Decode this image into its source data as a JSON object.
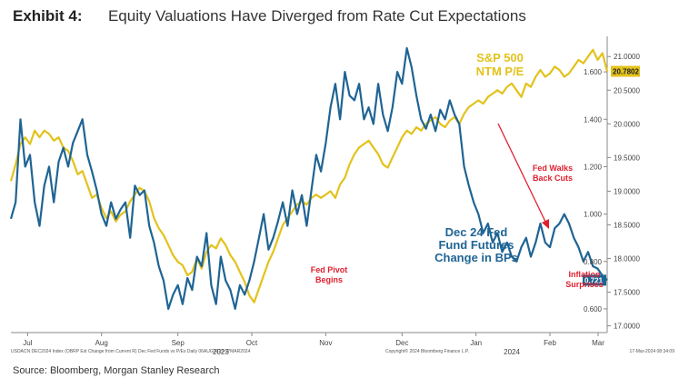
{
  "header": {
    "exhibit": "Exhibit 4:",
    "title": "Equity Valuations Have Diverged from Rate Cut Expectations"
  },
  "footer": {
    "source": "Source: Bloomberg, Morgan Stanley Research",
    "fine_left": "USDACN DEC2024 Index (OBRP Est Change from Current R) Dec Fed Funds vs P/Es  Daily 06AUG2023-17MAR2024",
    "fine_center": "Copyright© 2024 Bloomberg Finance L.P.",
    "fine_right": "17-Mar-2024 08:34:09"
  },
  "colors": {
    "gold": "#E3C21B",
    "blue": "#1F6494",
    "red": "#E0202F",
    "axis": "#444444"
  },
  "chart_data": {
    "type": "line",
    "x_months": [
      "Jul",
      "Aug",
      "Sep",
      "Oct",
      "Nov",
      "Dec",
      "Jan",
      "Feb",
      "Mar"
    ],
    "year_labels": [
      "2023",
      "2024"
    ],
    "y_left": {
      "ticks": [
        "1.600",
        "1.400",
        "1.200",
        "1.000",
        "0.800",
        "0.600"
      ],
      "ylim": [
        0.5,
        1.75
      ]
    },
    "y_right": {
      "ticks": [
        "21.0000",
        "20.5000",
        "20.0000",
        "19.5000",
        "19.0000",
        "18.5000",
        "18.0000",
        "17.5000",
        "17.0000"
      ],
      "ylim": [
        16.9,
        21.3
      ]
    },
    "series": [
      {
        "name": "S&P 500 NTM P/E",
        "axis": "right",
        "last_value": "20.7802",
        "x": [
          0,
          2,
          4,
          6,
          8,
          10,
          12,
          14,
          16,
          18,
          20,
          22,
          24,
          26,
          28,
          30,
          32,
          34,
          36,
          38,
          40,
          42,
          44,
          46,
          48,
          50,
          52,
          54,
          56,
          58,
          60,
          62,
          64,
          66,
          68,
          70,
          72,
          74,
          76,
          78,
          80,
          82,
          84,
          86,
          88,
          90,
          92,
          94,
          96,
          98,
          100,
          102,
          104,
          106,
          108,
          110,
          112,
          114,
          116,
          118,
          120,
          122,
          124,
          126,
          128,
          130,
          132,
          134,
          136,
          138,
          140,
          142,
          144,
          146,
          148,
          150,
          152,
          154,
          156,
          158,
          160,
          162,
          164,
          166,
          168,
          170,
          172,
          174,
          176,
          178,
          180,
          182,
          184,
          186,
          188,
          190,
          192,
          194,
          196,
          198,
          200,
          202,
          204,
          206,
          208,
          210,
          212,
          214,
          216,
          218,
          220,
          222,
          224,
          226,
          228,
          230,
          232,
          234,
          236,
          238,
          240,
          242,
          244,
          246,
          248,
          250
        ],
        "values": [
          19.15,
          19.4,
          19.7,
          19.8,
          19.7,
          19.9,
          19.8,
          19.9,
          19.85,
          19.75,
          19.8,
          19.65,
          19.6,
          19.45,
          19.25,
          19.3,
          19.1,
          18.9,
          18.95,
          18.75,
          18.6,
          18.7,
          18.55,
          18.65,
          18.7,
          18.85,
          18.95,
          19.05,
          19.0,
          18.85,
          18.6,
          18.45,
          18.35,
          18.2,
          18.05,
          17.95,
          17.9,
          17.75,
          17.8,
          18.0,
          17.85,
          18.1,
          18.2,
          18.15,
          18.3,
          18.2,
          18.05,
          17.95,
          17.8,
          17.65,
          17.45,
          17.35,
          17.55,
          17.75,
          17.95,
          18.1,
          18.3,
          18.5,
          18.6,
          18.7,
          18.8,
          18.85,
          18.8,
          18.9,
          18.95,
          18.9,
          18.95,
          19.0,
          18.9,
          19.1,
          19.2,
          19.4,
          19.55,
          19.65,
          19.7,
          19.75,
          19.65,
          19.55,
          19.4,
          19.35,
          19.5,
          19.65,
          19.8,
          19.9,
          19.85,
          19.95,
          19.9,
          20.0,
          20.05,
          20.1,
          20.0,
          19.95,
          20.05,
          20.1,
          20.0,
          20.15,
          20.25,
          20.3,
          20.35,
          20.3,
          20.4,
          20.45,
          20.5,
          20.45,
          20.55,
          20.6,
          20.5,
          20.4,
          20.6,
          20.55,
          20.7,
          20.8,
          20.7,
          20.75,
          20.85,
          20.8,
          20.7,
          20.75,
          20.85,
          20.95,
          20.9,
          21.0,
          21.1,
          20.95,
          21.05,
          20.78
        ]
      },
      {
        "name": "Dec 24 Fed Fund Futures Change in BPs",
        "axis": "left",
        "last_value": "0.721",
        "x": [
          0,
          2,
          4,
          6,
          8,
          10,
          12,
          14,
          16,
          18,
          20,
          22,
          24,
          26,
          28,
          30,
          32,
          34,
          36,
          38,
          40,
          42,
          44,
          46,
          48,
          50,
          52,
          54,
          56,
          58,
          60,
          62,
          64,
          66,
          68,
          70,
          72,
          74,
          76,
          78,
          80,
          82,
          84,
          86,
          88,
          90,
          92,
          94,
          96,
          98,
          100,
          102,
          104,
          106,
          108,
          110,
          112,
          114,
          116,
          118,
          120,
          122,
          124,
          126,
          128,
          130,
          132,
          134,
          136,
          138,
          140,
          142,
          144,
          146,
          148,
          150,
          152,
          154,
          156,
          158,
          160,
          162,
          164,
          166,
          168,
          170,
          172,
          174,
          176,
          178,
          180,
          182,
          184,
          186,
          188,
          190,
          192,
          194,
          196,
          198,
          200,
          202,
          204,
          206,
          208,
          210,
          212,
          214,
          216,
          218,
          220,
          222,
          224,
          226,
          228,
          230,
          232,
          234,
          236,
          238,
          240,
          242,
          244,
          246,
          248,
          250
        ],
        "values": [
          0.98,
          1.05,
          1.4,
          1.2,
          1.25,
          1.05,
          0.95,
          1.12,
          1.2,
          1.05,
          1.22,
          1.28,
          1.2,
          1.3,
          1.35,
          1.4,
          1.25,
          1.18,
          1.1,
          1.0,
          0.95,
          1.05,
          0.98,
          1.02,
          1.05,
          0.9,
          1.12,
          1.08,
          1.1,
          0.95,
          0.88,
          0.78,
          0.72,
          0.6,
          0.66,
          0.7,
          0.62,
          0.73,
          0.68,
          0.82,
          0.78,
          0.92,
          0.7,
          0.62,
          0.82,
          0.72,
          0.68,
          0.6,
          0.7,
          0.66,
          0.72,
          0.8,
          0.9,
          1.0,
          0.85,
          0.9,
          0.97,
          1.05,
          0.95,
          1.1,
          1.0,
          1.08,
          0.95,
          1.1,
          1.25,
          1.18,
          1.3,
          1.45,
          1.55,
          1.4,
          1.6,
          1.5,
          1.48,
          1.55,
          1.4,
          1.45,
          1.38,
          1.55,
          1.42,
          1.35,
          1.45,
          1.6,
          1.55,
          1.7,
          1.62,
          1.5,
          1.4,
          1.36,
          1.42,
          1.35,
          1.44,
          1.4,
          1.48,
          1.42,
          1.38,
          1.2,
          1.12,
          1.05,
          1.0,
          0.92,
          0.96,
          0.88,
          0.92,
          0.84,
          0.88,
          0.82,
          0.8,
          0.86,
          0.9,
          0.82,
          0.88,
          0.96,
          0.88,
          0.86,
          0.94,
          0.96,
          1.0,
          0.96,
          0.9,
          0.86,
          0.8,
          0.84,
          0.78,
          0.77,
          0.74,
          0.721
        ]
      }
    ],
    "annotations": {
      "spx_label": [
        "S&P 500",
        "NTM P/E"
      ],
      "fed_label": [
        "Dec 24 Fed",
        "Fund Futures",
        "Change in BPs"
      ],
      "pivot": [
        "Fed Pivot",
        "Begins"
      ],
      "walks": [
        "Fed Walks",
        "Back Cuts"
      ],
      "inflation": [
        "Inflation",
        "Surprises"
      ]
    }
  }
}
